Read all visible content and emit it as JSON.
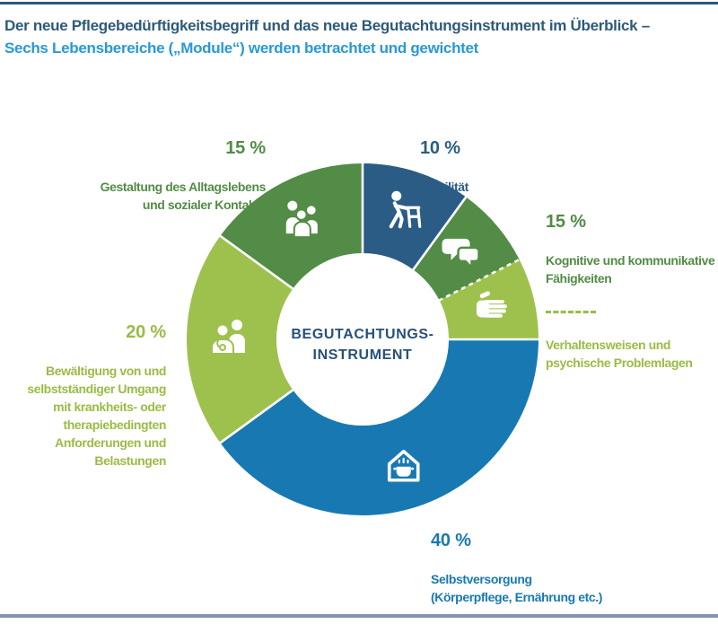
{
  "page": {
    "title_line1": "Der neue Pflegebedürftigkeitsbegriff und das neue Begutachtungsinstrument im Überblick –",
    "title_line2": "Sechs Lebensbereiche („Module“) werden betrachtet und gewichtet"
  },
  "colors": {
    "dark_blue": "#2a5c85",
    "blue": "#1879b2",
    "green": "#528c46",
    "lime": "#9ec14d",
    "lime_text": "#9abc45",
    "title_primary": "#2d5a78",
    "title_secondary": "#2999d6",
    "center_text": "#27517a",
    "rule_top": "#2a5878",
    "rule_bottom": "#8096ab",
    "separator": "#ffffff"
  },
  "chart_data": {
    "type": "pie",
    "donut": true,
    "start_angle_deg": 0,
    "direction": "clockwise",
    "center_label": "BEGUTACHTUNGS-\nINSTRUMENT",
    "segments": [
      {
        "id": "mobilitaet",
        "label": "Mobilität",
        "value": 10,
        "pct_text": "10 %",
        "color": "#2a5c85",
        "icon": "icon-walker"
      },
      {
        "id": "kognitiv",
        "label": "Kognitive und kommunikative Fähigkeiten",
        "value": 7.5,
        "group_pct": "15 %",
        "color": "#528c46",
        "icon": "icon-speech",
        "separator_after": "dashed"
      },
      {
        "id": "verhalten",
        "label": "Verhaltensweisen und psychische Problemlagen",
        "value": 7.5,
        "group_pct": "15 %",
        "color": "#9ec14d",
        "icon": "icon-hand"
      },
      {
        "id": "selbstversorgung",
        "label": "Selbstversorgung (Körperpflege, Ernährung etc.)",
        "value": 40,
        "pct_text": "40 %",
        "color": "#1879b2",
        "icon": "icon-house"
      },
      {
        "id": "bewaeltigung",
        "label": "Bewältigung von und selbstständiger Umgang mit krankheits- oder therapiebedingten Anforderungen und Belastungen",
        "value": 20,
        "pct_text": "20 %",
        "color": "#9ec14d",
        "icon": "icon-doctor"
      },
      {
        "id": "gestaltung",
        "label": "Gestaltung des Alltagslebens und sozialer Kontakte",
        "value": 15,
        "pct_text": "15 %",
        "color": "#528c46",
        "icon": "icon-people"
      }
    ]
  },
  "labels": {
    "mobilitaet": {
      "pct": "10 %",
      "text": "Mobilität"
    },
    "gestaltung": {
      "pct": "15 %",
      "text": "Gestaltung des Alltagslebens\nund sozialer Kontakte"
    },
    "kognitiv": {
      "pct": "15 %",
      "text1": "Kognitive und kommunikative\nFähigkeiten",
      "text2": "Verhaltensweisen und\npsychische Problemlagen"
    },
    "bewaeltigung": {
      "pct": "20 %",
      "text": "Bewältigung von und\nselbstständiger Umgang\nmit krankheits- oder\ntherapiebedingten\nAnforderungen und\nBelastungen"
    },
    "selbstversorgung": {
      "pct": "40 %",
      "text": "Selbstversorgung\n(Körperpflege, Ernährung etc.)"
    }
  }
}
